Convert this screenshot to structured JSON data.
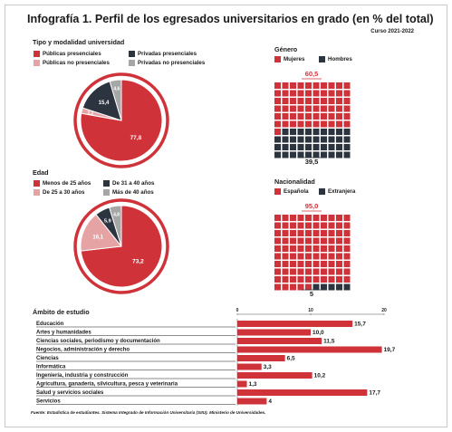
{
  "title": "Infografía 1. Perfil de los egresados universitarios en grado (en % del total)",
  "subtitle": "Curso 2021-2022",
  "source": "Fuente: Estadística de estudiantes. Sistema Integrado de Información Universitaria (SIIU). Ministerio de Universidades.",
  "colors": {
    "red": "#d0323a",
    "pink": "#e6a3a4",
    "dark": "#2c3440",
    "grey": "#a6a6a6"
  },
  "chart_data": [
    {
      "type": "pie",
      "title": "Tipo y modalidad universidad",
      "categories": [
        "Públicas presenciales",
        "Privadas presenciales",
        "Públicas no presenciales",
        "Privadas no presenciales"
      ],
      "values": [
        77.8,
        15.4,
        2.2,
        4.6
      ],
      "labels": [
        "77,8",
        "15,4",
        "2,2",
        "4,6"
      ]
    },
    {
      "type": "pie",
      "title": "Edad",
      "categories": [
        "Menos de 25 años",
        "De 31 a 40 años",
        "De 25 a 30 años",
        "Más de 40 años"
      ],
      "values": [
        73.2,
        5.9,
        16.1,
        4.8
      ],
      "labels": [
        "73,2",
        "5,9",
        "16,1",
        "4,8"
      ]
    },
    {
      "type": "waffle",
      "title": "Género",
      "categories": [
        "Mujeres",
        "Hombres"
      ],
      "values": [
        60.5,
        39.5
      ],
      "labels": [
        "60,5",
        "39,5"
      ]
    },
    {
      "type": "waffle",
      "title": "Nacionalidad",
      "categories": [
        "Española",
        "Extranjera"
      ],
      "values": [
        95.0,
        5.0
      ],
      "labels": [
        "95,0",
        "5"
      ]
    },
    {
      "type": "bar",
      "orientation": "horizontal",
      "title": "Ámbito de estudio",
      "categories": [
        "Educación",
        "Artes y humanidades",
        "Ciencias sociales, periodismo y documentación",
        "Negocios, administración y derecho",
        "Ciencias",
        "Informática",
        "Ingeniería, industria y construcción",
        "Agricultura, ganadería, silvicultura, pesca y veterinaria",
        "Salud y servicios sociales",
        "Servicios"
      ],
      "values": [
        15.7,
        10.0,
        11.5,
        19.7,
        6.5,
        3.3,
        10.2,
        1.3,
        17.7,
        4
      ],
      "labels": [
        "15,7",
        "10,0",
        "11,5",
        "19,7",
        "6,5",
        "3,3",
        "10,2",
        "1,3",
        "17,7",
        "4"
      ],
      "xticks": [
        "0",
        "10",
        "20"
      ],
      "xlim": [
        0,
        20
      ]
    }
  ]
}
